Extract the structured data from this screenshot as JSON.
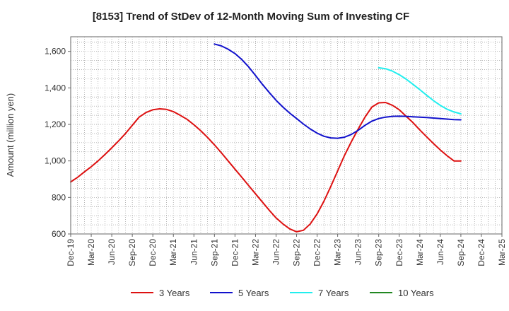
{
  "chart_data": {
    "type": "line",
    "title": "[8153]  Trend of StDev of 12-Month Moving Sum of Investing CF",
    "xlabel": "",
    "ylabel": "Amount (million yen)",
    "ylim": [
      600,
      1680
    ],
    "yticks": [
      600,
      800,
      1000,
      1200,
      1400,
      1600
    ],
    "ytick_labels": [
      "600",
      "800",
      "1,000",
      "1,200",
      "1,400",
      "1,600"
    ],
    "x_start": "2019-12",
    "x_end": "2025-03",
    "xtick_labels": [
      "Dec-19",
      "Mar-20",
      "Jun-20",
      "Sep-20",
      "Dec-20",
      "Mar-21",
      "Jun-21",
      "Sep-21",
      "Dec-21",
      "Mar-22",
      "Jun-22",
      "Sep-22",
      "Dec-22",
      "Mar-23",
      "Jun-23",
      "Sep-23",
      "Dec-23",
      "Mar-24",
      "Jun-24",
      "Sep-24",
      "Dec-24",
      "Mar-25"
    ],
    "grid": true,
    "legend_position": "bottom",
    "series": [
      {
        "name": "3 Years",
        "color": "#dd1111",
        "x": [
          "2019-12",
          "2020-01",
          "2020-02",
          "2020-03",
          "2020-04",
          "2020-05",
          "2020-06",
          "2020-07",
          "2020-08",
          "2020-09",
          "2020-10",
          "2020-11",
          "2020-12",
          "2021-01",
          "2021-02",
          "2021-03",
          "2021-04",
          "2021-05",
          "2021-06",
          "2021-07",
          "2021-08",
          "2021-09",
          "2021-10",
          "2021-11",
          "2021-12",
          "2022-01",
          "2022-02",
          "2022-03",
          "2022-04",
          "2022-05",
          "2022-06",
          "2022-07",
          "2022-08",
          "2022-09",
          "2022-10",
          "2022-11",
          "2022-12",
          "2023-01",
          "2023-02",
          "2023-03",
          "2023-04",
          "2023-05",
          "2023-06",
          "2023-07",
          "2023-08",
          "2023-09",
          "2023-10",
          "2023-11",
          "2023-12",
          "2024-01",
          "2024-02",
          "2024-03",
          "2024-04",
          "2024-05",
          "2024-06",
          "2024-07",
          "2024-08",
          "2024-09"
        ],
        "values": [
          885,
          910,
          940,
          968,
          1000,
          1035,
          1072,
          1110,
          1150,
          1195,
          1240,
          1265,
          1280,
          1285,
          1282,
          1270,
          1250,
          1228,
          1198,
          1165,
          1128,
          1088,
          1045,
          1000,
          955,
          910,
          865,
          820,
          775,
          730,
          688,
          655,
          628,
          612,
          620,
          655,
          710,
          780,
          860,
          945,
          1030,
          1105,
          1175,
          1240,
          1295,
          1318,
          1320,
          1305,
          1280,
          1245,
          1210,
          1170,
          1132,
          1095,
          1060,
          1028,
          1000,
          1000
        ]
      },
      {
        "name": "5 Years",
        "color": "#1111cc",
        "x": [
          "2021-09",
          "2021-10",
          "2021-11",
          "2021-12",
          "2022-01",
          "2022-02",
          "2022-03",
          "2022-04",
          "2022-05",
          "2022-06",
          "2022-07",
          "2022-08",
          "2022-09",
          "2022-10",
          "2022-11",
          "2022-12",
          "2023-01",
          "2023-02",
          "2023-03",
          "2023-04",
          "2023-05",
          "2023-06",
          "2023-07",
          "2023-08",
          "2023-09",
          "2023-10",
          "2023-11",
          "2023-12",
          "2024-01",
          "2024-02",
          "2024-03",
          "2024-04",
          "2024-05",
          "2024-06",
          "2024-07",
          "2024-08",
          "2024-09"
        ],
        "values": [
          1640,
          1630,
          1612,
          1588,
          1555,
          1515,
          1468,
          1420,
          1375,
          1332,
          1295,
          1262,
          1232,
          1202,
          1175,
          1152,
          1135,
          1126,
          1124,
          1130,
          1145,
          1168,
          1195,
          1218,
          1232,
          1240,
          1244,
          1245,
          1244,
          1242,
          1240,
          1238,
          1235,
          1232,
          1229,
          1226,
          1225
        ]
      },
      {
        "name": "7 Years",
        "color": "#22eeee",
        "x": [
          "2023-09",
          "2023-10",
          "2023-11",
          "2023-12",
          "2024-01",
          "2024-02",
          "2024-03",
          "2024-04",
          "2024-05",
          "2024-06",
          "2024-07",
          "2024-08",
          "2024-09"
        ],
        "values": [
          1510,
          1505,
          1492,
          1472,
          1448,
          1420,
          1390,
          1360,
          1330,
          1304,
          1283,
          1268,
          1258
        ]
      },
      {
        "name": "10 Years",
        "color": "#228822",
        "x": [],
        "values": []
      }
    ]
  }
}
